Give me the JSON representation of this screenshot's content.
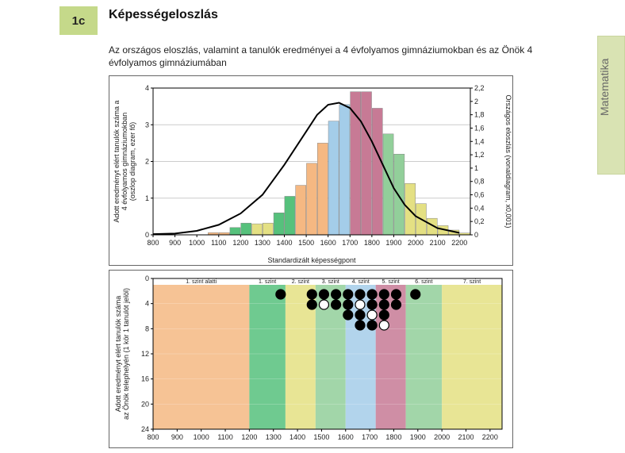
{
  "badge": "1c",
  "title": "Képességeloszlás",
  "subtitle": "Az országos eloszlás, valamint a tanulók eredményei a 4 évfolyamos gimnáziumokban és az Önök 4 évfolyamos gimnáziumában",
  "side_tab": "Matematika",
  "chart1": {
    "type": "bar+line",
    "x_ticks": [
      800,
      900,
      1000,
      1100,
      1200,
      1300,
      1400,
      1500,
      1600,
      1700,
      1800,
      1900,
      2000,
      2100,
      2200
    ],
    "x_label": "Standardizált képességpont",
    "y_left_ticks": [
      0,
      1,
      2,
      3,
      4
    ],
    "y_left_label": "Adott eredményt elért tanulók száma a 4 évfolyamos gimnáziumokban (oszlop diagram, ezer fő)",
    "y_right_ticks": [
      0,
      0.2,
      0.4,
      0.6,
      0.8,
      1.0,
      1.2,
      1.4,
      1.6,
      1.8,
      2.0,
      2.2
    ],
    "y_right_label": "Országos eloszlás (vonaldiagram, x0,001)",
    "bar_x_start": 1075,
    "bar_step": 50,
    "bars": [
      {
        "v": 0.06,
        "c": "#f5b882"
      },
      {
        "v": 0.06,
        "c": "#f5b882"
      },
      {
        "v": 0.2,
        "c": "#56c17c"
      },
      {
        "v": 0.32,
        "c": "#56c17c"
      },
      {
        "v": 0.3,
        "c": "#e4e083"
      },
      {
        "v": 0.32,
        "c": "#e4e083"
      },
      {
        "v": 0.6,
        "c": "#56c17c"
      },
      {
        "v": 1.05,
        "c": "#56c17c"
      },
      {
        "v": 1.35,
        "c": "#f5b882"
      },
      {
        "v": 1.95,
        "c": "#f5b882"
      },
      {
        "v": 2.5,
        "c": "#f5b882"
      },
      {
        "v": 3.1,
        "c": "#a4cde9"
      },
      {
        "v": 3.55,
        "c": "#a4cde9"
      },
      {
        "v": 3.9,
        "c": "#c77a95"
      },
      {
        "v": 3.9,
        "c": "#c77a95"
      },
      {
        "v": 3.45,
        "c": "#c77a95"
      },
      {
        "v": 2.75,
        "c": "#92cf9a"
      },
      {
        "v": 2.2,
        "c": "#92cf9a"
      },
      {
        "v": 1.4,
        "c": "#e4e083"
      },
      {
        "v": 0.85,
        "c": "#e4e083"
      },
      {
        "v": 0.45,
        "c": "#e4e083"
      },
      {
        "v": 0.25,
        "c": "#e4e083"
      },
      {
        "v": 0.13,
        "c": "#e4e083"
      },
      {
        "v": 0.05,
        "c": "#e4e083"
      }
    ],
    "curve": [
      [
        800,
        0.01
      ],
      [
        900,
        0.02
      ],
      [
        1000,
        0.06
      ],
      [
        1100,
        0.15
      ],
      [
        1200,
        0.32
      ],
      [
        1300,
        0.6
      ],
      [
        1400,
        1.05
      ],
      [
        1500,
        1.55
      ],
      [
        1550,
        1.8
      ],
      [
        1600,
        1.95
      ],
      [
        1650,
        1.98
      ],
      [
        1700,
        1.9
      ],
      [
        1750,
        1.7
      ],
      [
        1800,
        1.4
      ],
      [
        1850,
        1.05
      ],
      [
        1900,
        0.7
      ],
      [
        1950,
        0.45
      ],
      [
        2000,
        0.28
      ],
      [
        2100,
        0.1
      ],
      [
        2200,
        0.03
      ]
    ],
    "curve_color": "#000000",
    "curve_width": 2,
    "grid_color": "#cccccc",
    "background_color": "#ffffff",
    "axis_fontsize": 9
  },
  "chart2": {
    "type": "dot-strip",
    "x_ticks": [
      800,
      900,
      1000,
      1100,
      1200,
      1300,
      1400,
      1500,
      1600,
      1700,
      1800,
      1900,
      2000,
      2100,
      2200
    ],
    "y_ticks": [
      0,
      4,
      8,
      12,
      16,
      20,
      24
    ],
    "y_label": "Adott eredményt elért tanulók száma az Önök telephelyén (1 kör 1 tanulót jelöl)",
    "bands": [
      {
        "from": 800,
        "to": 1200,
        "color": "#f5b882",
        "label": "1. szint alatti"
      },
      {
        "from": 1200,
        "to": 1350,
        "color": "#56c17c",
        "label": "1. szint"
      },
      {
        "from": 1350,
        "to": 1475,
        "color": "#e4e083",
        "label": "2. szint"
      },
      {
        "from": 1475,
        "to": 1600,
        "color": "#92cf9a",
        "label": "3. szint"
      },
      {
        "from": 1600,
        "to": 1725,
        "color": "#a4cde9",
        "label": "4. szint"
      },
      {
        "from": 1725,
        "to": 1850,
        "color": "#c77a95",
        "label": "5. szint"
      },
      {
        "from": 1850,
        "to": 2000,
        "color": "#92cf9a",
        "label": "6. szint"
      },
      {
        "from": 2000,
        "to": 2250,
        "color": "#e4e083",
        "label": "7. szint"
      }
    ],
    "dots": [
      {
        "x": 1330,
        "row": 0,
        "f": "b"
      },
      {
        "x": 1460,
        "row": 0,
        "f": "b"
      },
      {
        "x": 1460,
        "row": 1,
        "f": "b"
      },
      {
        "x": 1510,
        "row": 0,
        "f": "b"
      },
      {
        "x": 1510,
        "row": 1,
        "f": "w"
      },
      {
        "x": 1560,
        "row": 0,
        "f": "b"
      },
      {
        "x": 1560,
        "row": 1,
        "f": "b"
      },
      {
        "x": 1610,
        "row": 0,
        "f": "b"
      },
      {
        "x": 1610,
        "row": 1,
        "f": "b"
      },
      {
        "x": 1610,
        "row": 2,
        "f": "b"
      },
      {
        "x": 1660,
        "row": 0,
        "f": "b"
      },
      {
        "x": 1660,
        "row": 1,
        "f": "w"
      },
      {
        "x": 1660,
        "row": 2,
        "f": "b"
      },
      {
        "x": 1660,
        "row": 3,
        "f": "b"
      },
      {
        "x": 1710,
        "row": 0,
        "f": "b"
      },
      {
        "x": 1710,
        "row": 1,
        "f": "b"
      },
      {
        "x": 1710,
        "row": 2,
        "f": "w"
      },
      {
        "x": 1710,
        "row": 3,
        "f": "b"
      },
      {
        "x": 1760,
        "row": 0,
        "f": "b"
      },
      {
        "x": 1760,
        "row": 1,
        "f": "b"
      },
      {
        "x": 1760,
        "row": 2,
        "f": "b"
      },
      {
        "x": 1760,
        "row": 3,
        "f": "w"
      },
      {
        "x": 1810,
        "row": 0,
        "f": "b"
      },
      {
        "x": 1810,
        "row": 1,
        "f": "b"
      },
      {
        "x": 1890,
        "row": 0,
        "f": "b"
      }
    ],
    "dot_radius": 6,
    "dot_fill_b": "#000000",
    "dot_fill_w": "#ffffff",
    "dot_stroke": "#000000",
    "axis_fontsize": 9
  }
}
